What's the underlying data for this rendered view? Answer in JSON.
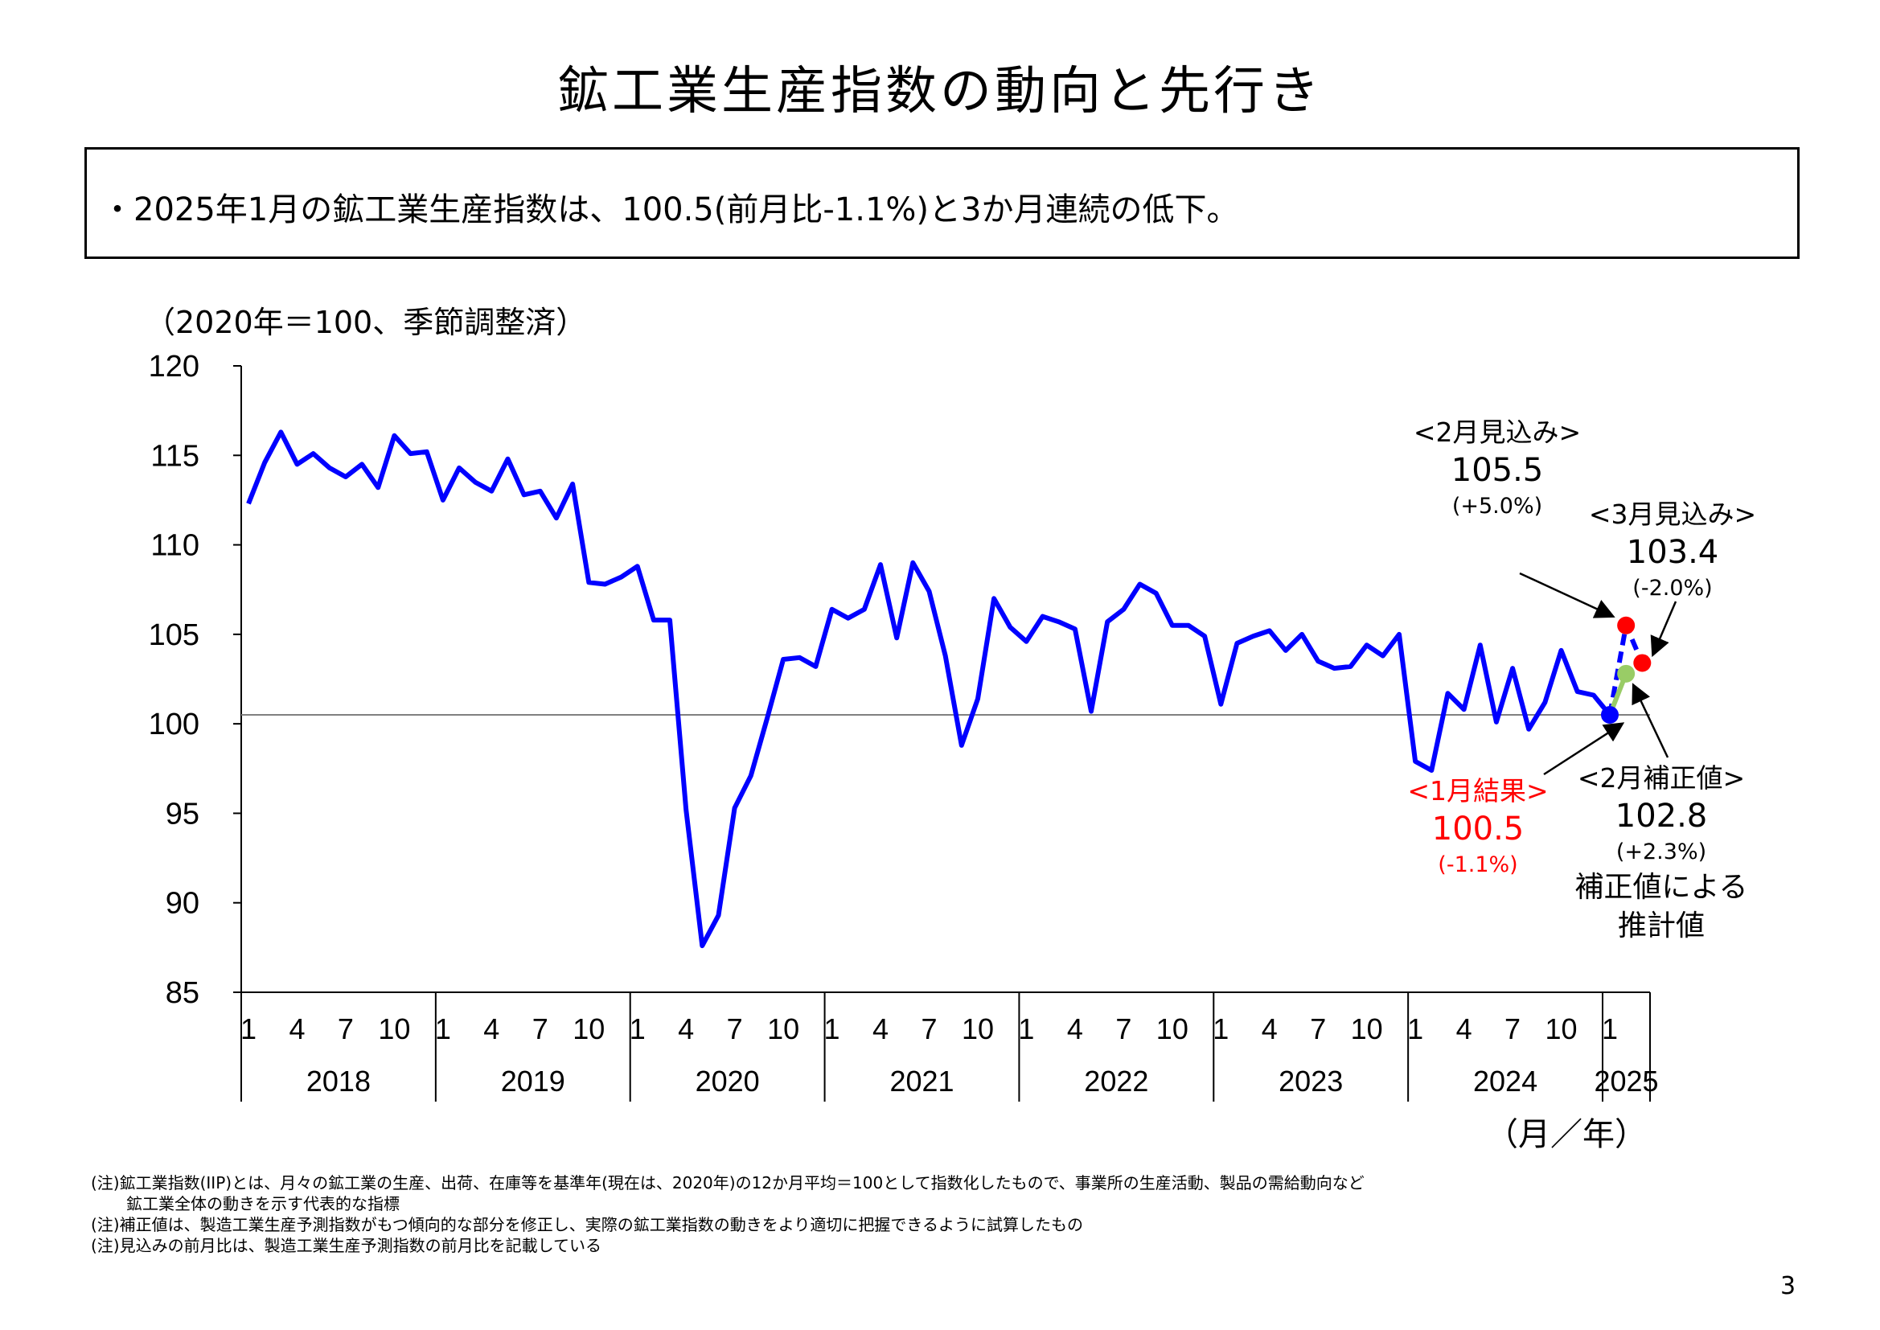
{
  "title": "鉱工業生産指数の動向と先行き",
  "summary": "・2025年1月の鉱工業生産指数は、100.5(前月比-1.1%)と3か月連続の低下。",
  "unit_label": "（2020年＝100、季節調整済）",
  "axis_unit": "（月／年）",
  "colors": {
    "series": "#0000ff",
    "baseline": "#808080",
    "marker_jan": "#0000ff",
    "marker_forecast": "#ff0000",
    "marker_corrected": "#99cc66",
    "corrected_line": "#99cc66",
    "result_text": "#ff0000"
  },
  "chart_data": {
    "type": "line",
    "title": "",
    "ylim": [
      85,
      120
    ],
    "yticks": [
      85,
      90,
      95,
      100,
      105,
      110,
      115,
      120
    ],
    "month_ticks": [
      "1",
      "4",
      "7",
      "10"
    ],
    "years": [
      "2018",
      "2019",
      "2020",
      "2021",
      "2022",
      "2023",
      "2024",
      "2025"
    ],
    "reference_line": 100.5,
    "series": [
      {
        "start": "2018-01",
        "values": [
          112.3,
          114.6,
          116.3,
          114.5,
          115.1,
          114.3,
          113.8,
          114.5,
          113.2,
          116.1,
          115.1,
          115.2,
          112.5,
          114.3,
          113.5,
          113.0,
          114.8,
          112.8,
          113.0,
          111.5,
          113.4,
          107.9,
          107.8,
          108.2,
          108.8,
          105.8,
          105.8,
          95.2,
          87.6,
          89.3,
          95.3,
          97.1,
          100.3,
          103.6,
          103.7,
          103.2,
          106.4,
          105.9,
          106.4,
          108.9,
          104.8,
          109.0,
          107.4,
          103.8,
          98.8,
          101.4,
          107.0,
          105.4,
          104.6,
          106.0,
          105.7,
          105.3,
          100.7,
          105.7,
          106.4,
          107.8,
          107.3,
          105.5,
          105.5,
          104.9,
          101.1,
          104.5,
          104.9,
          105.2,
          104.1,
          105.0,
          103.5,
          103.1,
          103.2,
          104.4,
          103.8,
          105.0,
          97.9,
          97.4,
          101.7,
          100.8,
          104.4,
          100.1,
          103.1,
          99.7,
          101.2,
          104.1,
          101.8,
          101.6,
          100.5
        ]
      },
      {
        "label": "見込み",
        "from": "2025-01",
        "values": [
          100.5,
          105.5,
          103.4
        ]
      },
      {
        "label": "補正値",
        "from": "2025-01",
        "values": [
          100.5,
          102.8
        ]
      }
    ]
  },
  "annotations": {
    "feb_forecast": {
      "label": "<2月見込み>",
      "value": "105.5",
      "pct": "(+5.0%)"
    },
    "mar_forecast": {
      "label": "<3月見込み>",
      "value": "103.4",
      "pct": "(-2.0%)"
    },
    "jan_result": {
      "label": "<1月結果>",
      "value": "100.5",
      "pct": "(-1.1%)"
    },
    "feb_corrected": {
      "label": "<2月補正値>",
      "value": "102.8",
      "pct": "(+2.3%)",
      "note1": "補正値による",
      "note2": "推計値"
    }
  },
  "notes": [
    "(注)鉱工業指数(IIP)とは、月々の鉱工業の生産、出荷、在庫等を基準年(現在は、2020年)の12か月平均＝100として指数化したもので、事業所の生産活動、製品の需給動向など",
    "鉱工業全体の動きを示す代表的な指標",
    "(注)補正値は、製造工業生産予測指数がもつ傾向的な部分を修正し、実際の鉱工業指数の動きをより適切に把握できるように試算したもの",
    "(注)見込みの前月比は、製造工業生産予測指数の前月比を記載している"
  ],
  "page_number": "3"
}
